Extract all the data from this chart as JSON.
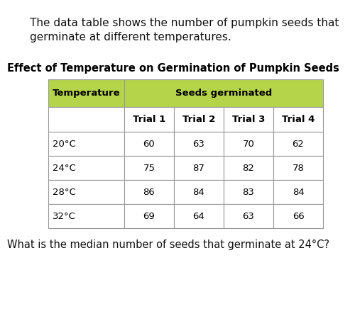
{
  "intro_text_line1": "The data table shows the number of pumpkin seeds that",
  "intro_text_line2": "germinate at different temperatures.",
  "table_title": "Effect of Temperature on Germination of Pumpkin Seeds",
  "header_row2": [
    "",
    "Trial 1",
    "Trial 2",
    "Trial 3",
    "Trial 4"
  ],
  "data_rows": [
    [
      "20°C",
      "60",
      "63",
      "70",
      "62"
    ],
    [
      "24°C",
      "75",
      "87",
      "82",
      "78"
    ],
    [
      "28°C",
      "86",
      "84",
      "83",
      "84"
    ],
    [
      "32°C",
      "69",
      "64",
      "63",
      "66"
    ]
  ],
  "footer_text": "What is the median number of seeds that germinate at 24°C?",
  "header_bg_color": "#b5d44a",
  "white": "#ffffff",
  "border_color": "#999999",
  "background_color": "#ffffff",
  "intro_fontsize": 11.0,
  "title_fontsize": 10.5,
  "table_fontsize": 9.5,
  "footer_fontsize": 10.5
}
